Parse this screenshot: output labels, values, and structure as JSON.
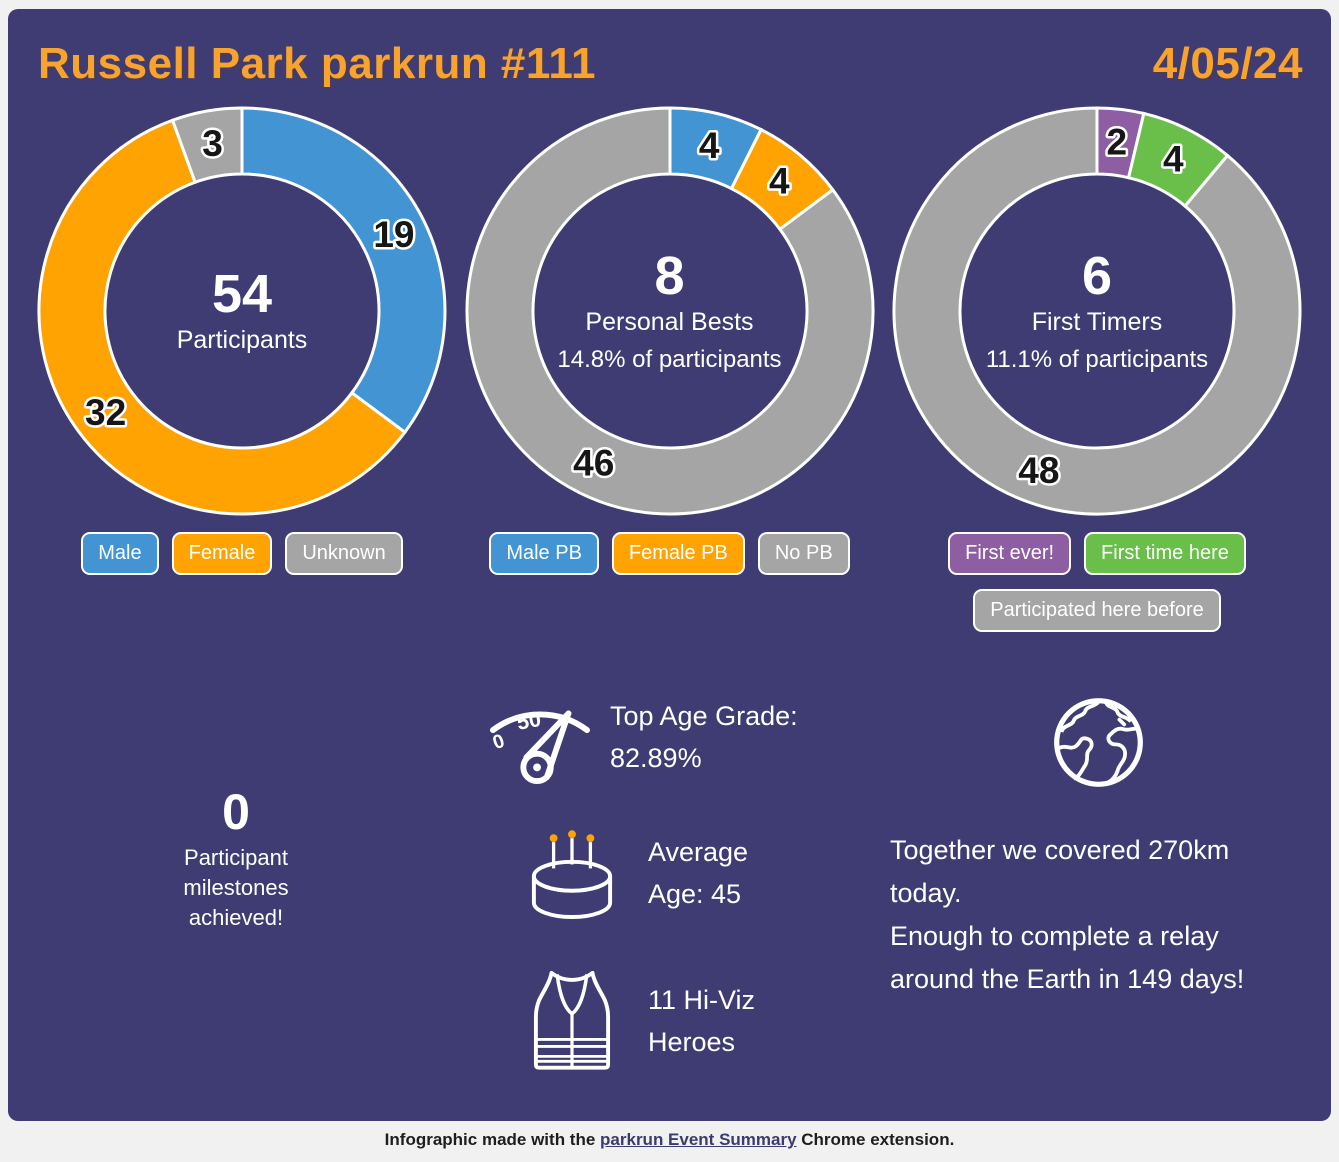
{
  "header": {
    "title": "Russell Park parkrun #111",
    "date": "4/05/24"
  },
  "colors": {
    "accent_orange": "#f9a32f",
    "card_background": "#3e3c72",
    "male_blue": "#4294d3",
    "female_orange": "#ffa302",
    "neutral_gray": "#a5a5a5",
    "first_ever_purple": "#8e5ea2",
    "first_time_green": "#6abf4b"
  },
  "chart_data": [
    {
      "type": "donut",
      "name": "participants",
      "total": 54,
      "center": {
        "value": "54",
        "label": "Participants",
        "sublabel": ""
      },
      "slices": [
        {
          "label": "Male",
          "value": 19,
          "color": "#4294d3"
        },
        {
          "label": "Female",
          "value": 32,
          "color": "#ffa302"
        },
        {
          "label": "Unknown",
          "value": 3,
          "color": "#a5a5a5"
        }
      ]
    },
    {
      "type": "donut",
      "name": "personal-bests",
      "total": 54,
      "center": {
        "value": "8",
        "label": "Personal Bests",
        "sublabel": "14.8% of participants"
      },
      "slices": [
        {
          "label": "Male PB",
          "value": 4,
          "color": "#4294d3"
        },
        {
          "label": "Female PB",
          "value": 4,
          "color": "#ffa302"
        },
        {
          "label": "No PB",
          "value": 46,
          "color": "#a5a5a5"
        }
      ]
    },
    {
      "type": "donut",
      "name": "first-timers",
      "total": 54,
      "center": {
        "value": "6",
        "label": "First Timers",
        "sublabel": "11.1% of participants"
      },
      "slices": [
        {
          "label": "First ever!",
          "value": 2,
          "color": "#8e5ea2"
        },
        {
          "label": "First time here",
          "value": 4,
          "color": "#6abf4b"
        },
        {
          "label": "Participated here before",
          "value": 48,
          "color": "#a5a5a5"
        }
      ]
    }
  ],
  "stats": {
    "milestones_value": "0",
    "milestones_label": "Participant milestones achieved!",
    "age_grade": "Top Age Grade: 82.89%",
    "average_age": "Average Age: 45",
    "hi_viz": "11 Hi-Viz Heroes",
    "distance_line1": "Together we covered 270km today.",
    "distance_line2": "Enough to complete a relay around the Earth in 149 days!"
  },
  "gauge_icon": {
    "tick_low": "0",
    "tick_high": "50"
  },
  "footer": {
    "prefix": "Infographic made with the ",
    "link_text": "parkrun Event Summary",
    "suffix": " Chrome extension."
  }
}
